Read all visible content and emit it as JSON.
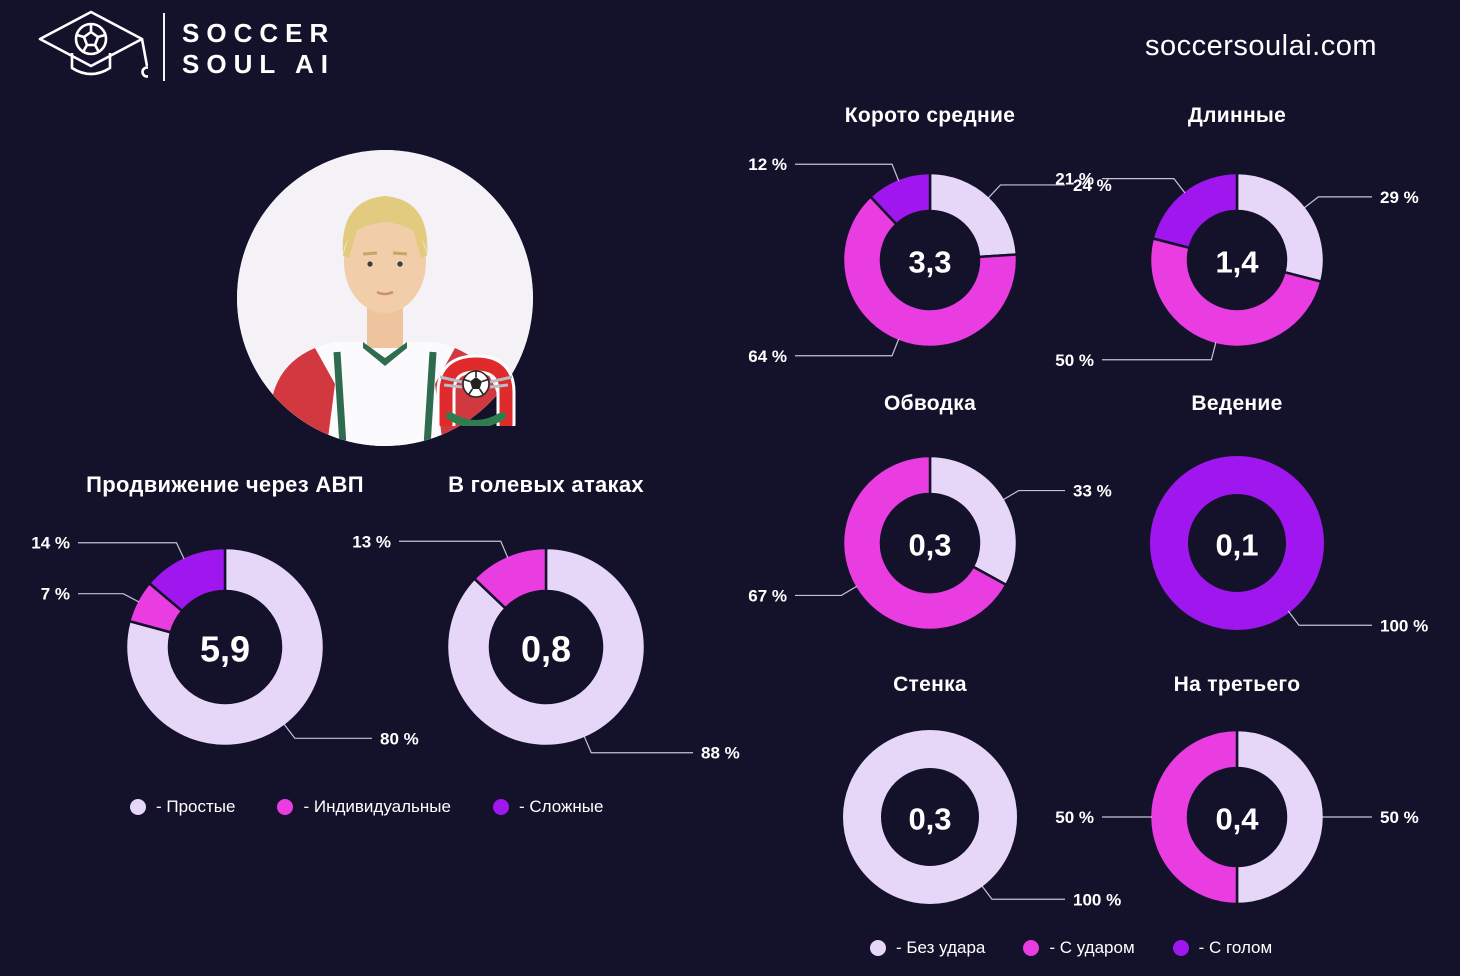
{
  "header": {
    "brand_line1": "SOCCER",
    "brand_line2": "SOUL AI",
    "website": "soccersoulai.com"
  },
  "icons": {
    "brand_logo": "graduation-cap-soccer-ball-logo",
    "club_badge": "lokomotiv-moscow-crest",
    "player_photo": "player-portrait"
  },
  "colors": {
    "background": "#14122a",
    "simple": "#e6d6f7",
    "individual": "#e93ce1",
    "complex": "#a016ee",
    "leader_line": "rgba(230,225,245,0.85)"
  },
  "legend_left": [
    {
      "label": "- Простые",
      "color_key": "simple"
    },
    {
      "label": "- Индивидуальные",
      "color_key": "individual"
    },
    {
      "label": "- Сложные",
      "color_key": "complex"
    }
  ],
  "legend_right": [
    {
      "label": "- Без удара",
      "color_key": "simple"
    },
    {
      "label": "- С ударом",
      "color_key": "individual"
    },
    {
      "label": "- С голом",
      "color_key": "complex"
    }
  ],
  "chart_data": [
    {
      "id": "avp",
      "type": "donut",
      "title": "Продвижение через АВП",
      "center_value": "5,9",
      "segments": [
        {
          "label": "80 %",
          "value": 80,
          "color_key": "simple"
        },
        {
          "label": "7 %",
          "value": 7,
          "color_key": "individual"
        },
        {
          "label": "14 %",
          "value": 14,
          "color_key": "complex"
        }
      ]
    },
    {
      "id": "goal-attacks",
      "type": "donut",
      "title": "В голевых атаках",
      "center_value": "0,8",
      "segments": [
        {
          "label": "88 %",
          "value": 88,
          "color_key": "simple"
        },
        {
          "label": "13 %",
          "value": 13,
          "color_key": "individual"
        }
      ]
    },
    {
      "id": "short-medium-passes",
      "type": "donut",
      "title": "Корото средние",
      "center_value": "3,3",
      "segments": [
        {
          "label": "24 %",
          "value": 24,
          "color_key": "simple"
        },
        {
          "label": "64 %",
          "value": 64,
          "color_key": "individual"
        },
        {
          "label": "12 %",
          "value": 12,
          "color_key": "complex"
        }
      ]
    },
    {
      "id": "long-passes",
      "type": "donut",
      "title": "Длинные",
      "center_value": "1,4",
      "segments": [
        {
          "label": "29 %",
          "value": 29,
          "color_key": "simple"
        },
        {
          "label": "50 %",
          "value": 50,
          "color_key": "individual"
        },
        {
          "label": "21 %",
          "value": 21,
          "color_key": "complex"
        }
      ]
    },
    {
      "id": "dribble",
      "type": "donut",
      "title": "Обводка",
      "center_value": "0,3",
      "segments": [
        {
          "label": "33 %",
          "value": 33,
          "color_key": "simple"
        },
        {
          "label": "67 %",
          "value": 67,
          "color_key": "individual"
        }
      ]
    },
    {
      "id": "carrying",
      "type": "donut",
      "title": "Ведение",
      "center_value": "0,1",
      "segments": [
        {
          "label": "100 %",
          "value": 100,
          "color_key": "complex",
          "label_angle": 143
        }
      ]
    },
    {
      "id": "wall-pass",
      "type": "donut",
      "title": "Стенка",
      "center_value": "0,3",
      "segments": [
        {
          "label": "100 %",
          "value": 100,
          "color_key": "simple",
          "label_angle": 143
        }
      ]
    },
    {
      "id": "third-man",
      "type": "donut",
      "title": "На третьего",
      "center_value": "0,4",
      "segments": [
        {
          "label": "50 %",
          "value": 50,
          "color_key": "simple"
        },
        {
          "label": "50 %",
          "value": 50,
          "color_key": "individual"
        }
      ]
    }
  ]
}
